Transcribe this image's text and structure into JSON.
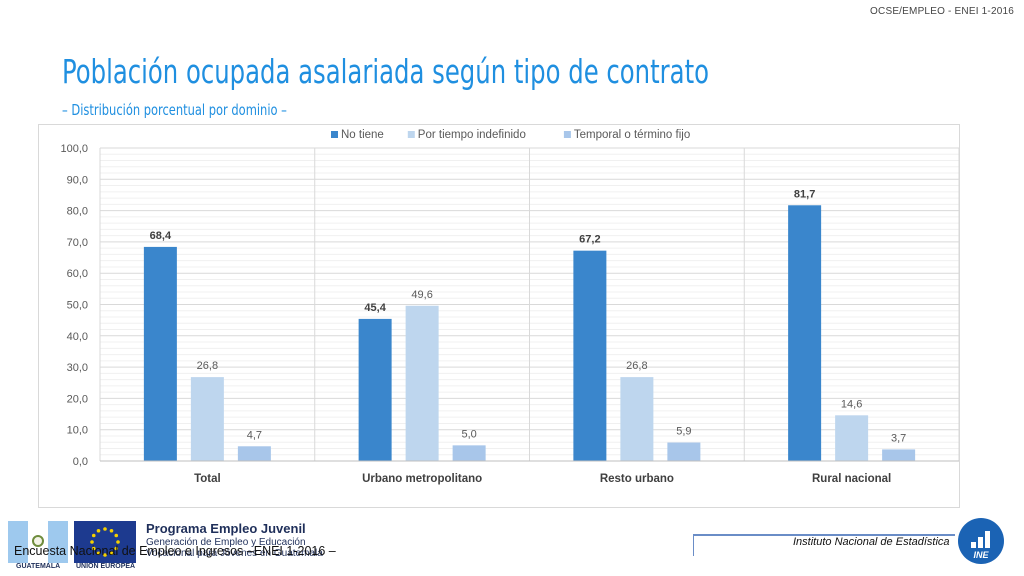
{
  "header": {
    "tag": "OCSE/EMPLEO - ENEI 1-2016"
  },
  "title": "Población ocupada asalariada según tipo de contrato",
  "subtitle": "– Distribución porcentual por dominio –",
  "chart_data": {
    "type": "bar",
    "categories": [
      "Total",
      "Urbano metropolitano",
      "Resto urbano",
      "Rural nacional"
    ],
    "series": [
      {
        "name": "No tiene",
        "values": [
          68.4,
          45.4,
          67.2,
          81.7
        ],
        "color": "#3a86cc",
        "label_bold": true
      },
      {
        "name": "Por tiempo indefinido",
        "values": [
          26.8,
          49.6,
          26.8,
          14.6
        ],
        "color": "#bed6ee",
        "label_bold": false
      },
      {
        "name": "Temporal o término fijo",
        "values": [
          4.7,
          5.0,
          5.9,
          3.7
        ],
        "color": "#a8c6ea",
        "label_bold": false
      }
    ],
    "ylim": [
      0,
      100
    ],
    "yticks": [
      "0,0",
      "10,0",
      "20,0",
      "30,0",
      "40,0",
      "50,0",
      "60,0",
      "70,0",
      "80,0",
      "90,0",
      "100,0"
    ],
    "value_labels": [
      [
        "68,4",
        "45,4",
        "67,2",
        "81,7"
      ],
      [
        "26,8",
        "49,6",
        "26,8",
        "14,6"
      ],
      [
        "4,7",
        "5,0",
        "5,9",
        "3,7"
      ]
    ],
    "legend_position": "top",
    "grid": true
  },
  "footer": {
    "source": "Encuesta Nacional de Empleo e Ingresos –ENEI 1-2016 –",
    "institute": "Instituto Nacional de Estadística",
    "program_title": "Programa Empleo Juvenil",
    "program_line1": "Generación de Empleo y Educación",
    "program_line2": "Vocacional para Jóvenes en Guatemala",
    "flag_gt_caption": "GUATEMALA",
    "flag_eu_caption": "UNIÓN EUROPEA",
    "ine_text": "INE"
  }
}
